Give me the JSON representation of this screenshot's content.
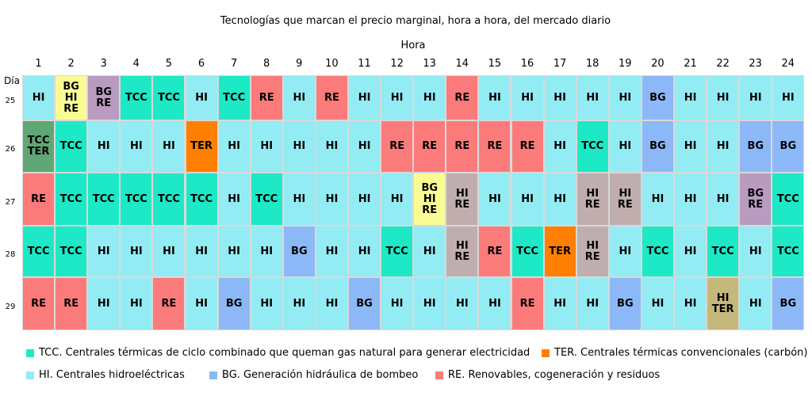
{
  "chart_data": {
    "type": "table",
    "title": "Tecnologías que marcan  el precio marginal, hora a hora, del mercado diario",
    "xlabel": "Hora",
    "ylabel": "Día",
    "hours": [
      "1",
      "2",
      "3",
      "4",
      "5",
      "6",
      "7",
      "8",
      "9",
      "10",
      "11",
      "12",
      "13",
      "14",
      "15",
      "16",
      "17",
      "18",
      "19",
      "20",
      "21",
      "22",
      "23",
      "24"
    ],
    "rows": [
      {
        "day": "25",
        "cells": [
          [
            "HI"
          ],
          [
            "BG",
            "HI",
            "RE"
          ],
          [
            "BG",
            "RE"
          ],
          [
            "TCC"
          ],
          [
            "TCC"
          ],
          [
            "HI"
          ],
          [
            "TCC"
          ],
          [
            "RE"
          ],
          [
            "HI"
          ],
          [
            "RE"
          ],
          [
            "HI"
          ],
          [
            "HI"
          ],
          [
            "HI"
          ],
          [
            "RE"
          ],
          [
            "HI"
          ],
          [
            "HI"
          ],
          [
            "HI"
          ],
          [
            "HI"
          ],
          [
            "HI"
          ],
          [
            "BG"
          ],
          [
            "HI"
          ],
          [
            "HI"
          ],
          [
            "HI"
          ],
          [
            "HI"
          ]
        ]
      },
      {
        "day": "26",
        "cells": [
          [
            "TCC",
            "TER"
          ],
          [
            "TCC"
          ],
          [
            "HI"
          ],
          [
            "HI"
          ],
          [
            "HI"
          ],
          [
            "TER"
          ],
          [
            "HI"
          ],
          [
            "HI"
          ],
          [
            "HI"
          ],
          [
            "HI"
          ],
          [
            "HI"
          ],
          [
            "RE"
          ],
          [
            "RE"
          ],
          [
            "RE"
          ],
          [
            "RE"
          ],
          [
            "RE"
          ],
          [
            "HI"
          ],
          [
            "TCC"
          ],
          [
            "HI"
          ],
          [
            "BG"
          ],
          [
            "HI"
          ],
          [
            "HI"
          ],
          [
            "BG"
          ],
          [
            "BG"
          ]
        ]
      },
      {
        "day": "27",
        "cells": [
          [
            "RE"
          ],
          [
            "TCC"
          ],
          [
            "TCC"
          ],
          [
            "TCC"
          ],
          [
            "TCC"
          ],
          [
            "TCC"
          ],
          [
            "HI"
          ],
          [
            "TCC"
          ],
          [
            "HI"
          ],
          [
            "HI"
          ],
          [
            "HI"
          ],
          [
            "HI"
          ],
          [
            "BG",
            "HI",
            "RE"
          ],
          [
            "HI",
            "RE"
          ],
          [
            "HI"
          ],
          [
            "HI"
          ],
          [
            "HI"
          ],
          [
            "HI",
            "RE"
          ],
          [
            "HI",
            "RE"
          ],
          [
            "HI"
          ],
          [
            "HI"
          ],
          [
            "HI"
          ],
          [
            "BG",
            "RE"
          ],
          [
            "TCC"
          ]
        ]
      },
      {
        "day": "28",
        "cells": [
          [
            "TCC"
          ],
          [
            "TCC"
          ],
          [
            "HI"
          ],
          [
            "HI"
          ],
          [
            "HI"
          ],
          [
            "HI"
          ],
          [
            "HI"
          ],
          [
            "HI"
          ],
          [
            "BG"
          ],
          [
            "HI"
          ],
          [
            "HI"
          ],
          [
            "TCC"
          ],
          [
            "HI"
          ],
          [
            "HI",
            "RE"
          ],
          [
            "RE"
          ],
          [
            "TCC"
          ],
          [
            "TER"
          ],
          [
            "HI",
            "RE"
          ],
          [
            "HI"
          ],
          [
            "TCC"
          ],
          [
            "HI"
          ],
          [
            "TCC"
          ],
          [
            "HI"
          ],
          [
            "TCC"
          ]
        ]
      },
      {
        "day": "29",
        "cells": [
          [
            "RE"
          ],
          [
            "RE"
          ],
          [
            "HI"
          ],
          [
            "HI"
          ],
          [
            "RE"
          ],
          [
            "HI"
          ],
          [
            "BG"
          ],
          [
            "HI"
          ],
          [
            "HI"
          ],
          [
            "HI"
          ],
          [
            "BG"
          ],
          [
            "HI"
          ],
          [
            "HI"
          ],
          [
            "HI"
          ],
          [
            "HI"
          ],
          [
            "RE"
          ],
          [
            "HI"
          ],
          [
            "HI"
          ],
          [
            "BG"
          ],
          [
            "HI"
          ],
          [
            "HI"
          ],
          [
            "HI",
            "TER"
          ],
          [
            "HI"
          ],
          [
            "BG"
          ]
        ]
      }
    ],
    "legend": [
      {
        "code": "TCC",
        "label": "TCC. Centrales térmicas de ciclo combinado que queman gas natural para generar electricidad",
        "color": "#1de9c6"
      },
      {
        "code": "TER",
        "label": "TER. Centrales térmicas convencionales (carbón)",
        "color": "#ff7f00"
      },
      {
        "code": "HI",
        "label": "HI. Centrales hidroeléctricas",
        "color": "#93ecf3"
      },
      {
        "code": "BG",
        "label": "BG. Generación hidráulica de bombeo",
        "color": "#8db8f7"
      },
      {
        "code": "RE",
        "label": "RE. Renovables, cogeneración y residuos",
        "color": "#fb7b7b"
      }
    ],
    "combo_colors": {
      "TCC|TER": "#5fa774",
      "BG|HI|RE": "#fbfb94",
      "BG|RE": "#b99bbf",
      "HI|RE": "#c0aeae",
      "HI|TER": "#c4b87b"
    }
  }
}
